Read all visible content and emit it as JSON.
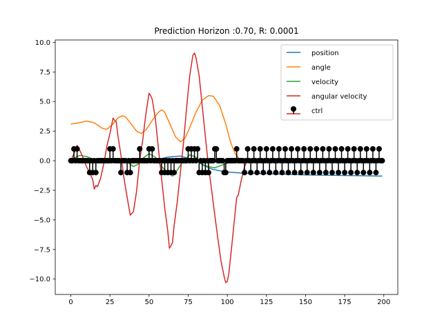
{
  "chart_data": {
    "type": "line",
    "title": "Prediction Horizon :0.70, R: 0.0001",
    "xlabel": "",
    "ylabel": "",
    "xlim": [
      -9.95,
      208.95
    ],
    "ylim": [
      -11.3,
      10.2
    ],
    "xticks": [
      0,
      25,
      50,
      75,
      100,
      125,
      150,
      175,
      200
    ],
    "xtick_labels": [
      "0",
      "25",
      "50",
      "75",
      "100",
      "125",
      "150",
      "175",
      "200"
    ],
    "yticks": [
      10.0,
      7.5,
      5.0,
      2.5,
      0.0,
      -2.5,
      -5.0,
      -7.5,
      -10.0
    ],
    "ytick_labels": [
      "10.0",
      "7.5",
      "5.0",
      "2.5",
      "0.0",
      "−2.5",
      "−5.0",
      "−7.5",
      "−10.0"
    ],
    "legend_position": "top-right",
    "series": [
      {
        "name": "position",
        "color": "#1f77b4",
        "style": "line",
        "points": [
          [
            0,
            0.0
          ],
          [
            20,
            0.05
          ],
          [
            40,
            0.0
          ],
          [
            55,
            0.1
          ],
          [
            62,
            0.3
          ],
          [
            70,
            0.4
          ],
          [
            75,
            0.2
          ],
          [
            80,
            0.0
          ],
          [
            85,
            -0.4
          ],
          [
            90,
            -0.7
          ],
          [
            95,
            -0.85
          ],
          [
            100,
            -0.95
          ],
          [
            110,
            -1.05
          ],
          [
            125,
            -1.1
          ],
          [
            150,
            -1.2
          ],
          [
            175,
            -1.25
          ],
          [
            199,
            -1.3
          ]
        ]
      },
      {
        "name": "angle",
        "color": "#ff7f0e",
        "style": "line",
        "points": [
          [
            0,
            3.1
          ],
          [
            5,
            3.2
          ],
          [
            10,
            3.35
          ],
          [
            15,
            3.2
          ],
          [
            20,
            2.75
          ],
          [
            23,
            2.65
          ],
          [
            27,
            3.1
          ],
          [
            30,
            3.6
          ],
          [
            33,
            3.8
          ],
          [
            35,
            3.7
          ],
          [
            38,
            3.2
          ],
          [
            42,
            2.5
          ],
          [
            45,
            2.3
          ],
          [
            48,
            2.6
          ],
          [
            52,
            3.4
          ],
          [
            56,
            4.1
          ],
          [
            58,
            4.3
          ],
          [
            60,
            4.1
          ],
          [
            63,
            3.2
          ],
          [
            67,
            2.0
          ],
          [
            70,
            1.6
          ],
          [
            73,
            1.9
          ],
          [
            76,
            2.8
          ],
          [
            80,
            4.1
          ],
          [
            84,
            5.1
          ],
          [
            88,
            5.5
          ],
          [
            91,
            5.45
          ],
          [
            95,
            4.7
          ],
          [
            99,
            3.1
          ],
          [
            102,
            1.6
          ],
          [
            105,
            0.6
          ],
          [
            108,
            0.1
          ],
          [
            112,
            0.0
          ],
          [
            150,
            0.0
          ],
          [
            199,
            0.0
          ]
        ]
      },
      {
        "name": "velocity",
        "color": "#2ca02c",
        "style": "line",
        "points": [
          [
            0,
            0.0
          ],
          [
            3,
            0.3
          ],
          [
            6,
            0.45
          ],
          [
            10,
            0.35
          ],
          [
            15,
            0.1
          ],
          [
            20,
            -0.1
          ],
          [
            25,
            -0.2
          ],
          [
            30,
            0.0
          ],
          [
            33,
            0.15
          ],
          [
            36,
            -0.1
          ],
          [
            40,
            -0.5
          ],
          [
            43,
            -0.3
          ],
          [
            46,
            0.2
          ],
          [
            50,
            0.6
          ],
          [
            54,
            0.3
          ],
          [
            58,
            -0.5
          ],
          [
            62,
            -1.0
          ],
          [
            65,
            -1.3
          ],
          [
            68,
            -0.8
          ],
          [
            72,
            0.0
          ],
          [
            76,
            0.5
          ],
          [
            80,
            0.3
          ],
          [
            84,
            -0.3
          ],
          [
            88,
            -0.5
          ],
          [
            92,
            -0.6
          ],
          [
            96,
            -0.4
          ],
          [
            100,
            -0.2
          ],
          [
            104,
            -0.1
          ],
          [
            110,
            0.0
          ],
          [
            150,
            0.0
          ],
          [
            199,
            0.0
          ]
        ]
      },
      {
        "name": "angular velocity",
        "color": "#d62728",
        "style": "line",
        "points": [
          [
            0,
            0.0
          ],
          [
            2,
            0.6
          ],
          [
            4,
            1.3
          ],
          [
            6,
            0.8
          ],
          [
            8,
            0.2
          ],
          [
            10,
            -0.5
          ],
          [
            12,
            -1.0
          ],
          [
            14,
            -1.6
          ],
          [
            15,
            -2.4
          ],
          [
            16,
            -2.1
          ],
          [
            17,
            -2.2
          ],
          [
            19,
            -1.5
          ],
          [
            21,
            -0.3
          ],
          [
            23,
            1.2
          ],
          [
            25,
            2.3
          ],
          [
            27,
            3.6
          ],
          [
            28,
            3.4
          ],
          [
            29,
            3.3
          ],
          [
            30,
            2.2
          ],
          [
            32,
            0.5
          ],
          [
            34,
            -1.5
          ],
          [
            36,
            -3.1
          ],
          [
            38,
            -4.6
          ],
          [
            40,
            -4.3
          ],
          [
            42,
            -2.6
          ],
          [
            44,
            0.0
          ],
          [
            46,
            1.8
          ],
          [
            48,
            4.0
          ],
          [
            50,
            5.7
          ],
          [
            51,
            5.5
          ],
          [
            52,
            5.2
          ],
          [
            54,
            3.6
          ],
          [
            56,
            1.0
          ],
          [
            58,
            -1.5
          ],
          [
            60,
            -4.0
          ],
          [
            62,
            -6.0
          ],
          [
            63,
            -7.4
          ],
          [
            64,
            -7.2
          ],
          [
            65,
            -6.9
          ],
          [
            66,
            -5.5
          ],
          [
            68,
            -3.5
          ],
          [
            70,
            -1.0
          ],
          [
            72,
            1.5
          ],
          [
            74,
            4.5
          ],
          [
            76,
            7.2
          ],
          [
            78,
            8.9
          ],
          [
            79,
            9.1
          ],
          [
            80,
            8.7
          ],
          [
            82,
            7.2
          ],
          [
            84,
            4.6
          ],
          [
            86,
            2.0
          ],
          [
            88,
            -0.5
          ],
          [
            90,
            -2.5
          ],
          [
            92,
            -4.6
          ],
          [
            94,
            -6.6
          ],
          [
            96,
            -8.5
          ],
          [
            98,
            -9.8
          ],
          [
            99,
            -10.3
          ],
          [
            100,
            -10.2
          ],
          [
            101,
            -9.5
          ],
          [
            103,
            -7.0
          ],
          [
            105,
            -4.4
          ],
          [
            106,
            -3.1
          ],
          [
            107,
            -2.9
          ],
          [
            109,
            -1.6
          ],
          [
            111,
            -0.5
          ],
          [
            113,
            0.1
          ],
          [
            115,
            0.0
          ],
          [
            150,
            0.0
          ],
          [
            199,
            0.0
          ]
        ]
      },
      {
        "name": "ctrl",
        "color": "#000000",
        "baseline_color": "#d62728",
        "style": "stem",
        "x_range": [
          0,
          199
        ],
        "nonzero": [
          [
            2,
            1
          ],
          [
            4,
            1
          ],
          [
            12,
            -1
          ],
          [
            14,
            -1
          ],
          [
            16,
            -1
          ],
          [
            25,
            1
          ],
          [
            27,
            1
          ],
          [
            32,
            -1
          ],
          [
            36,
            -1
          ],
          [
            38,
            -1
          ],
          [
            44,
            1
          ],
          [
            50,
            1
          ],
          [
            52,
            1
          ],
          [
            58,
            -1
          ],
          [
            60,
            -1
          ],
          [
            62,
            -1
          ],
          [
            64,
            -1
          ],
          [
            66,
            -1
          ],
          [
            75,
            1
          ],
          [
            77,
            1
          ],
          [
            79,
            1
          ],
          [
            81,
            1
          ],
          [
            82,
            -1
          ],
          [
            84,
            -1
          ],
          [
            86,
            -1
          ],
          [
            88,
            -1
          ],
          [
            92,
            1
          ],
          [
            93,
            1
          ],
          [
            98,
            -1
          ],
          [
            99,
            -1
          ],
          [
            106,
            1
          ],
          [
            111,
            -1
          ],
          [
            113,
            1
          ],
          [
            115,
            -1
          ],
          [
            117,
            1
          ],
          [
            119,
            -1
          ],
          [
            121,
            1
          ],
          [
            123,
            -1
          ],
          [
            125,
            1
          ],
          [
            127,
            -1
          ],
          [
            129,
            1
          ],
          [
            131,
            -1
          ],
          [
            133,
            1
          ],
          [
            135,
            -1
          ],
          [
            137,
            1
          ],
          [
            139,
            -1
          ],
          [
            141,
            1
          ],
          [
            143,
            -1
          ],
          [
            145,
            1
          ],
          [
            147,
            -1
          ],
          [
            149,
            1
          ],
          [
            151,
            -1
          ],
          [
            153,
            1
          ],
          [
            155,
            -1
          ],
          [
            157,
            1
          ],
          [
            159,
            -1
          ],
          [
            161,
            1
          ],
          [
            163,
            -1
          ],
          [
            165,
            1
          ],
          [
            167,
            -1
          ],
          [
            169,
            1
          ],
          [
            171,
            -1
          ],
          [
            173,
            1
          ],
          [
            175,
            -1
          ],
          [
            177,
            1
          ],
          [
            179,
            -1
          ],
          [
            181,
            1
          ],
          [
            183,
            -1
          ],
          [
            185,
            1
          ],
          [
            187,
            -1
          ],
          [
            189,
            1
          ],
          [
            191,
            -1
          ],
          [
            193,
            1
          ],
          [
            195,
            -1
          ],
          [
            197,
            1
          ]
        ]
      }
    ]
  }
}
